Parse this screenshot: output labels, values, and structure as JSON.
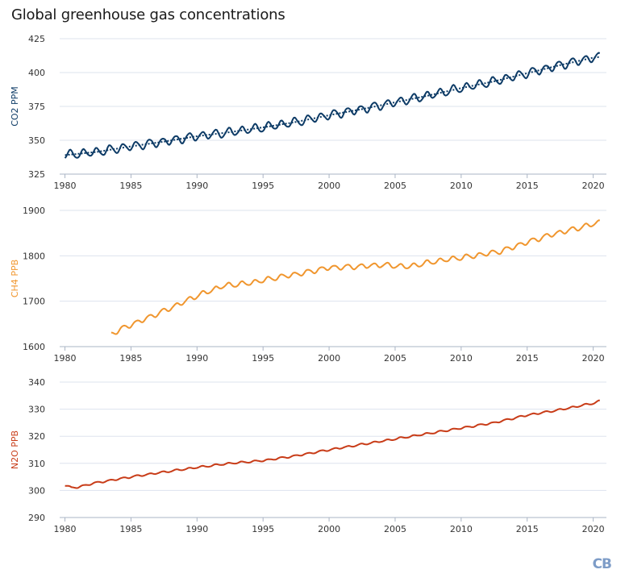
{
  "title": "Global greenhouse gas concentrations",
  "logo_text": "CB",
  "chart_data": [
    {
      "type": "line",
      "name": "co2",
      "ylabel": "CO2 PPM",
      "color": "#0d3b66",
      "ylim": [
        325,
        425
      ],
      "yticks": [
        325,
        350,
        375,
        400,
        425
      ],
      "xlim": [
        1980,
        2021
      ],
      "xticks": [
        1980,
        1985,
        1990,
        1995,
        2000,
        2005,
        2010,
        2015,
        2020
      ],
      "x": [
        1980.0,
        1982.5,
        1985.0,
        1987.5,
        1990.0,
        1992.5,
        1995.0,
        1997.5,
        2000.0,
        2002.5,
        2005.0,
        2007.5,
        2010.0,
        2012.5,
        2015.0,
        2017.5,
        2020.0,
        2020.5
      ],
      "values": [
        339.0,
        341.5,
        345.5,
        349.0,
        353.0,
        356.0,
        359.5,
        363.5,
        368.5,
        373.0,
        378.0,
        383.0,
        388.5,
        393.5,
        399.5,
        405.5,
        411.0,
        411.5
      ],
      "seasonal_amplitude": 3,
      "has_trend_line": true
    },
    {
      "type": "line",
      "name": "ch4",
      "ylabel": "CH4 PPB",
      "color": "#f0962e",
      "ylim": [
        1600,
        1900
      ],
      "yticks": [
        1600,
        1700,
        1800,
        1900
      ],
      "xlim": [
        1980,
        2021
      ],
      "xticks": [
        1980,
        1985,
        1990,
        1995,
        2000,
        2005,
        2010,
        2015,
        2020
      ],
      "x": [
        1983.5,
        1984.5,
        1986.0,
        1988.0,
        1990.0,
        1992.0,
        1994.0,
        1996.0,
        1998.0,
        2000.0,
        2002.0,
        2004.0,
        2006.0,
        2007.5,
        2009.0,
        2011.0,
        2013.0,
        2015.0,
        2017.0,
        2019.0,
        2020.5
      ],
      "values": [
        1628,
        1642,
        1660,
        1685,
        1712,
        1734,
        1740,
        1752,
        1762,
        1774,
        1776,
        1780,
        1776,
        1785,
        1792,
        1800,
        1810,
        1830,
        1848,
        1862,
        1874
      ],
      "seasonal_amplitude": 5,
      "has_trend_line": false
    },
    {
      "type": "line",
      "name": "n2o",
      "ylabel": "N2O PPB",
      "color": "#c83c18",
      "ylim": [
        290,
        340
      ],
      "yticks": [
        290,
        300,
        310,
        320,
        330,
        340
      ],
      "xlim": [
        1980,
        2021
      ],
      "xticks": [
        1980,
        1985,
        1990,
        1995,
        2000,
        2005,
        2010,
        2015,
        2020
      ],
      "x": [
        1980.0,
        1980.5,
        1981.0,
        1982.0,
        1985.0,
        1987.5,
        1990.0,
        1992.5,
        1995.0,
        1997.5,
        2000.0,
        2002.5,
        2005.0,
        2007.5,
        2010.0,
        2012.5,
        2015.0,
        2017.5,
        2020.0,
        2020.5
      ],
      "values": [
        302.0,
        301.0,
        301.2,
        302.5,
        305.0,
        306.8,
        308.5,
        310.0,
        311.0,
        312.8,
        315.0,
        317.0,
        319.0,
        321.0,
        323.0,
        325.0,
        327.8,
        329.8,
        332.2,
        333.0
      ],
      "seasonal_amplitude": 0.3,
      "has_trend_line": false
    }
  ]
}
